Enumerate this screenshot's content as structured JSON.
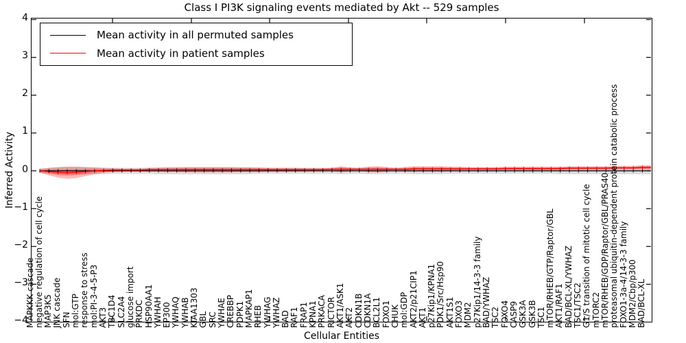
{
  "chart_data": {
    "type": "line",
    "title": "Class I PI3K signaling events mediated by Akt -- 529 samples",
    "xlabel": "Cellular Entities",
    "ylabel": "Inferred Activity",
    "ylim": [
      -4,
      4
    ],
    "ytick_labels": [
      "4",
      "3",
      "2",
      "1",
      "0",
      "−1",
      "−2",
      "−3",
      "−4"
    ],
    "grid": false,
    "legend_position": "upper left",
    "categories": [
      "MAPKKK cascade",
      "negative regulation of cell cycle",
      "MAP3K5",
      "JNK cascade",
      "SFN",
      "mol:GTP",
      "response to stress",
      "mol:PI-3-4-5-P3",
      "AKT3",
      "TBC1D4",
      "SLC2A4",
      "glucose import",
      "PRKDC",
      "HSP90AA1",
      "YWHAH",
      "EP300",
      "YWHAQ",
      "YWHAB",
      "KIAA1303",
      "GBL",
      "SRC",
      "YWHAE",
      "CREBBP",
      "PDPK1",
      "MAPKAP1",
      "RHEB",
      "YWHAG",
      "YWHAZ",
      "BAD",
      "RAF1",
      "FRAP1",
      "KPNA1",
      "PRKACA",
      "RICTOR",
      "AKT1/ASK1",
      "AKT2",
      "CDKN1B",
      "CDKN1A",
      "BCL2L1",
      "FOXO1",
      "CHUK",
      "mol:GDP",
      "AKT2/p21CIP1",
      "AKT1",
      "p27Kip1/KPNA1",
      "PDK1/Src/Hsp90",
      "AKT1S1",
      "FOXO3",
      "MDM2",
      "p27Kip1/14-3-3 family",
      "BAD/YWHAZ",
      "TSC2",
      "FOXO4",
      "CASP9",
      "GSK3A",
      "GSK3B",
      "TSC1",
      "mTOR/RHEB/GTP/Raptor/GBL",
      "AKT1/RAF1",
      "BAD/BCL-XL/YWHAZ",
      "TSC1/TSC2",
      "G1/S transition of mitotic cell cycle",
      "mTORC2",
      "mTOR/RHEB/GDP/Raptor/GBL/PRAS40",
      "proteasomal ubiquitin-dependent protein catabolic process",
      "FOXO1-3a-4/14-3-3 family",
      "MDM2/Cbp/p300",
      "BAD/BCL-XL"
    ],
    "series": [
      {
        "name": "Mean activity in all permuted samples",
        "color": "#000000",
        "band_color": "#c9c9c9",
        "band_opacity": 0.65,
        "values": [
          0,
          0,
          0,
          0,
          0,
          0,
          0,
          0,
          0,
          0,
          0,
          0,
          0,
          0,
          0,
          0,
          0,
          0,
          0,
          0,
          0,
          0,
          0,
          0,
          0,
          0,
          0,
          0,
          0,
          0,
          0,
          0,
          0,
          0,
          0,
          0,
          0,
          0,
          0,
          0,
          0,
          0,
          0,
          0,
          0,
          0,
          0,
          0,
          0,
          0,
          0,
          0,
          0,
          0,
          0,
          0,
          0,
          0,
          0,
          0,
          0,
          0,
          0,
          0,
          0,
          0,
          0,
          0
        ],
        "band_half": [
          0.06,
          0.08,
          0.09,
          0.1,
          0.1,
          0.1,
          0.09,
          0.09,
          0.08,
          0.08,
          0.08,
          0.08,
          0.08,
          0.09,
          0.09,
          0.09,
          0.09,
          0.09,
          0.09,
          0.09,
          0.09,
          0.09,
          0.09,
          0.09,
          0.08,
          0.08,
          0.08,
          0.08,
          0.08,
          0.08,
          0.08,
          0.08,
          0.08,
          0.09,
          0.08,
          0.08,
          0.09,
          0.09,
          0.08,
          0.08,
          0.08,
          0.09,
          0.09,
          0.09,
          0.09,
          0.08,
          0.08,
          0.08,
          0.08,
          0.08,
          0.08,
          0.08,
          0.08,
          0.08,
          0.08,
          0.08,
          0.08,
          0.09,
          0.09,
          0.09,
          0.09,
          0.09,
          0.09,
          0.09,
          0.09,
          0.09,
          0.09,
          0.09
        ]
      },
      {
        "name": "Mean activity in patient samples",
        "color": "#ff0000",
        "band_color": "#ff0000",
        "band_opacity": 0.28,
        "values": [
          0.0,
          -0.02,
          -0.04,
          -0.05,
          -0.04,
          -0.02,
          0.0,
          0.01,
          0.02,
          0.02,
          0.02,
          0.02,
          0.03,
          0.03,
          0.03,
          0.03,
          0.03,
          0.03,
          0.03,
          0.03,
          0.03,
          0.03,
          0.03,
          0.03,
          0.03,
          0.03,
          0.03,
          0.03,
          0.03,
          0.03,
          0.03,
          0.03,
          0.04,
          0.04,
          0.04,
          0.04,
          0.04,
          0.04,
          0.04,
          0.04,
          0.04,
          0.05,
          0.05,
          0.05,
          0.05,
          0.05,
          0.05,
          0.05,
          0.05,
          0.05,
          0.05,
          0.06,
          0.06,
          0.06,
          0.06,
          0.06,
          0.06,
          0.06,
          0.07,
          0.07,
          0.07,
          0.07,
          0.07,
          0.08,
          0.08,
          0.08,
          0.09,
          0.09
        ],
        "band_half": [
          0.05,
          0.1,
          0.14,
          0.16,
          0.15,
          0.12,
          0.09,
          0.06,
          0.05,
          0.04,
          0.04,
          0.04,
          0.05,
          0.05,
          0.06,
          0.06,
          0.07,
          0.07,
          0.07,
          0.07,
          0.07,
          0.07,
          0.06,
          0.06,
          0.06,
          0.05,
          0.05,
          0.05,
          0.05,
          0.04,
          0.04,
          0.04,
          0.04,
          0.08,
          0.05,
          0.04,
          0.07,
          0.08,
          0.06,
          0.04,
          0.06,
          0.07,
          0.07,
          0.07,
          0.07,
          0.06,
          0.06,
          0.05,
          0.05,
          0.05,
          0.05,
          0.05,
          0.05,
          0.05,
          0.05,
          0.05,
          0.05,
          0.05,
          0.05,
          0.05,
          0.05,
          0.05,
          0.05,
          0.05,
          0.05,
          0.05,
          0.06,
          0.06
        ]
      }
    ]
  },
  "legend": {
    "items": [
      {
        "label": "Mean activity in all permuted samples",
        "color": "#000000"
      },
      {
        "label": "Mean activity in patient samples",
        "color": "#ff0000"
      }
    ]
  }
}
